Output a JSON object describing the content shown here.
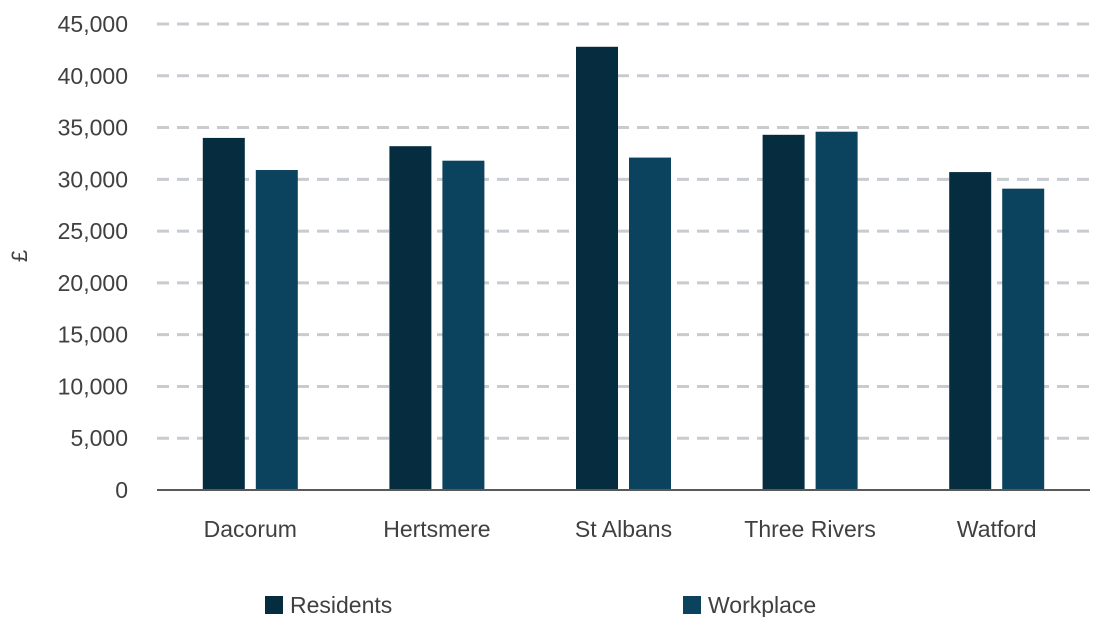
{
  "chart_data": {
    "type": "bar",
    "title": "",
    "xlabel": "",
    "ylabel": "£",
    "ylim": [
      0,
      45000
    ],
    "yticks": [
      0,
      5000,
      10000,
      15000,
      20000,
      25000,
      30000,
      35000,
      40000,
      45000
    ],
    "ytick_labels": [
      "0",
      "5,000",
      "10,000",
      "15,000",
      "20,000",
      "25,000",
      "30,000",
      "35,000",
      "40,000",
      "45,000"
    ],
    "grid": true,
    "legend_position": "bottom",
    "categories": [
      "Dacorum",
      "Hertsmere",
      "St Albans",
      "Three Rivers",
      "Watford"
    ],
    "series": [
      {
        "name": "Residents",
        "color": "#062c3f",
        "values": [
          34000,
          33200,
          42800,
          34300,
          30700
        ]
      },
      {
        "name": "Workplace",
        "color": "#0b425d",
        "values": [
          30900,
          31800,
          32100,
          34600,
          29100
        ]
      }
    ]
  }
}
